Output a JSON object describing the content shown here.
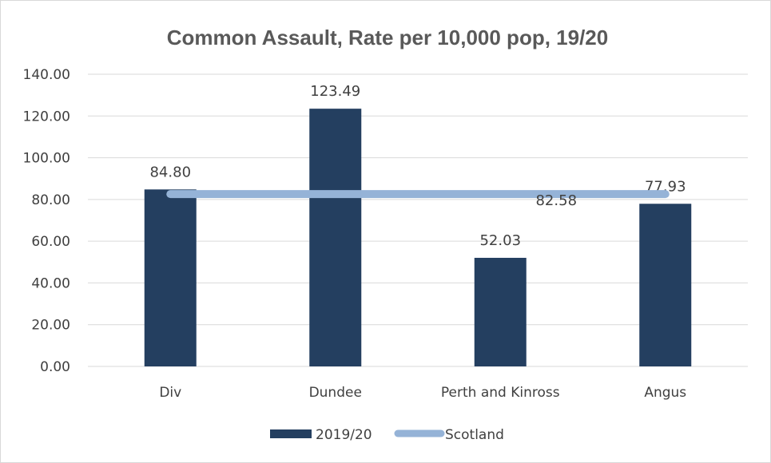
{
  "chart_data": {
    "type": "bar",
    "title": "Common Assault, Rate per 10,000 pop, 19/20",
    "categories": [
      "Div",
      "Dundee",
      "Perth and Kinross",
      "Angus"
    ],
    "series": [
      {
        "name": "2019/20",
        "kind": "bar",
        "values": [
          84.8,
          123.49,
          52.03,
          77.93
        ],
        "labels": [
          "84.80",
          "123.49",
          "52.03",
          "77.93"
        ]
      },
      {
        "name": "Scotland",
        "kind": "line",
        "values": [
          82.58,
          82.58,
          82.58,
          82.58
        ],
        "label": "82.58"
      }
    ],
    "ylim": [
      0,
      140
    ],
    "yticks": [
      "0.00",
      "20.00",
      "40.00",
      "60.00",
      "80.00",
      "100.00",
      "120.00",
      "140.00"
    ],
    "grid": true,
    "legend_position": "bottom",
    "colors": {
      "bar": "#243f60",
      "line": "#95b3d7",
      "grid": "#d9d9d9",
      "text": "#404040"
    }
  }
}
